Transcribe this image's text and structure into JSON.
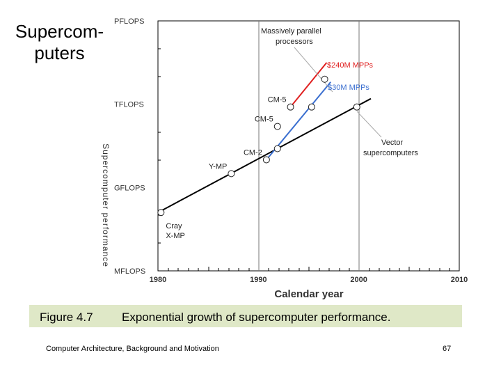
{
  "slide": {
    "title_line1": "Supercom-",
    "title_line2": "puters",
    "caption_label": "Figure 4.7",
    "caption_text": "Exponential growth of supercomputer performance.",
    "footer_left": "Computer Architecture, Background and Motivation",
    "footer_right": "67"
  },
  "chart_data": {
    "type": "line",
    "title": "",
    "xlabel": "Calendar year",
    "ylabel": "Supercomputer performance",
    "xlim": [
      1980,
      2010
    ],
    "ylim_exp10": [
      6,
      15
    ],
    "x_ticks": [
      1980,
      1990,
      2000,
      2010
    ],
    "y_ticks": [
      {
        "label": "MFLOPS",
        "exp10": 6
      },
      {
        "label": "GFLOPS",
        "exp10": 9
      },
      {
        "label": "TFLOPS",
        "exp10": 12
      },
      {
        "label": "PFLOPS",
        "exp10": 15
      }
    ],
    "series": [
      {
        "name": "Vector supercomputers trend",
        "color": "#000000",
        "points": [
          {
            "x": 1980,
            "exp10": 8.1
          },
          {
            "x": 2001.2,
            "exp10": 12.2
          }
        ]
      },
      {
        "name": "$30M MPPs",
        "color": "#3b6fd0",
        "points": [
          {
            "x": 1990.8,
            "exp10": 10.0
          },
          {
            "x": 1997.2,
            "exp10": 12.8
          }
        ]
      },
      {
        "name": "$240M MPPs",
        "color": "#e02020",
        "points": [
          {
            "x": 1993.2,
            "exp10": 11.9
          },
          {
            "x": 1996.8,
            "exp10": 13.5
          }
        ]
      }
    ],
    "data_points": [
      {
        "label": "Cray X-MP",
        "x": 1980.3,
        "exp10": 8.1
      },
      {
        "label": "Y-MP",
        "x": 1987.3,
        "exp10": 9.5
      },
      {
        "label": "CM-2",
        "x": 1990.8,
        "exp10": 10.0
      },
      {
        "label": "",
        "x": 1991.9,
        "exp10": 10.4
      },
      {
        "label": "CM-5",
        "x": 1991.9,
        "exp10": 11.2
      },
      {
        "label": "CM-5",
        "x": 1993.2,
        "exp10": 11.9
      },
      {
        "label": "",
        "x": 1995.3,
        "exp10": 11.9
      },
      {
        "label": "",
        "x": 1996.6,
        "exp10": 12.9
      },
      {
        "label": "",
        "x": 1999.8,
        "exp10": 11.9
      }
    ],
    "annotations": [
      {
        "text": "Massively parallel",
        "line2": "processors"
      },
      {
        "text": "$240M MPPs"
      },
      {
        "text": "$30M MPPs"
      },
      {
        "text": "Vector",
        "line2": "supercomputers"
      }
    ]
  }
}
